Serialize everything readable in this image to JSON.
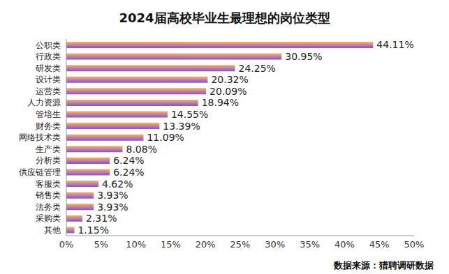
{
  "chart_data": {
    "type": "bar",
    "orientation": "horizontal",
    "title": "2024届高校毕业生最理想的岗位类型",
    "source": "数据来源：猎聘调研数据",
    "categories": [
      "公职类",
      "行政类",
      "研发类",
      "设计类",
      "运营类",
      "人力资源",
      "管培生",
      "财务类",
      "网络技术类",
      "生产类",
      "分析类",
      "供应链管理",
      "客服类",
      "销售类",
      "法务类",
      "采购类",
      "其他"
    ],
    "values": [
      44.11,
      30.95,
      24.25,
      20.32,
      20.09,
      18.94,
      14.55,
      13.39,
      11.09,
      8.08,
      6.24,
      6.24,
      4.62,
      3.93,
      3.93,
      2.31,
      1.15
    ],
    "value_labels": [
      "44.11%",
      "30.95%",
      "24.25%",
      "20.32%",
      "20.09%",
      "18.94%",
      "14.55%",
      "13.39%",
      "11.09%",
      "8.08%",
      "6.24%",
      "6.24%",
      "4.62%",
      "3.93%",
      "3.93%",
      "2.31%",
      "1.15%"
    ],
    "data_labels": true,
    "color": "#8a4fd8",
    "xlim": [
      0,
      50
    ],
    "xticks": [
      {
        "value": 0,
        "label": "0%"
      },
      {
        "value": 5,
        "label": "5%"
      },
      {
        "value": 10,
        "label": "10%"
      },
      {
        "value": 15,
        "label": "15%"
      },
      {
        "value": 20,
        "label": "20%"
      },
      {
        "value": 25,
        "label": "25%"
      },
      {
        "value": 30,
        "label": "30%"
      },
      {
        "value": 35,
        "label": "35%"
      },
      {
        "value": 40,
        "label": "40%"
      },
      {
        "value": 45,
        "label": "45%"
      },
      {
        "value": 50,
        "label": "50%"
      }
    ],
    "grid": false
  }
}
